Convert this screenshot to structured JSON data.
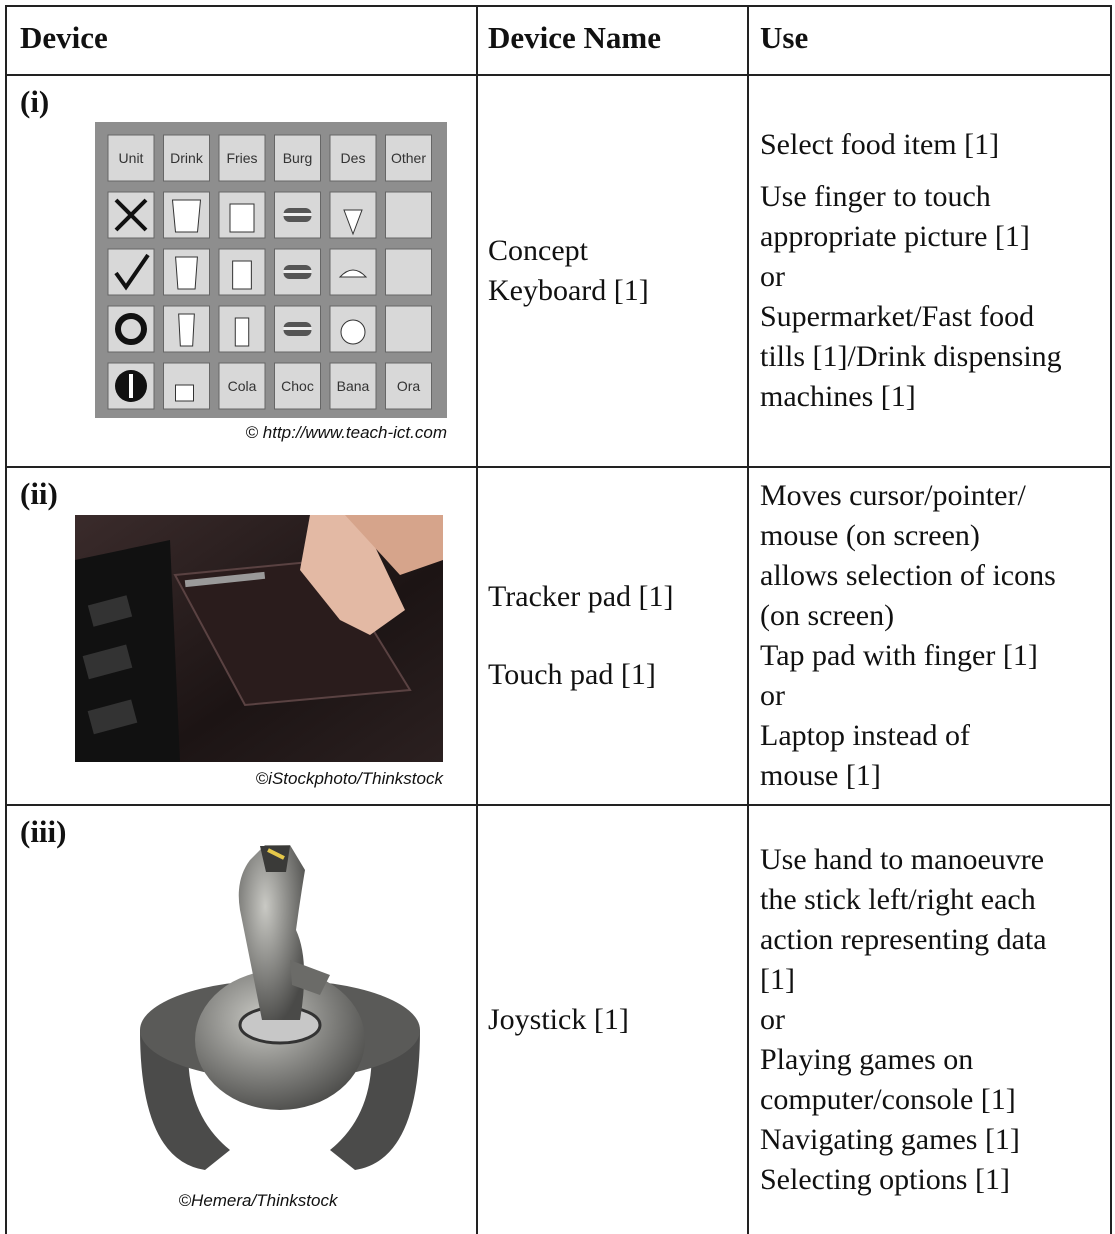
{
  "table": {
    "headers": [
      "Device",
      "Device Name",
      "Use"
    ],
    "rows": [
      {
        "label": "(i)",
        "image": {
          "top_keys": [
            "Unit",
            "Drink",
            "Fries",
            "Burg",
            "Des",
            "Other"
          ],
          "bottom_keys": [
            "Cola",
            "Choc",
            "Bana",
            "Ora"
          ],
          "credit": "© http://www.teach-ict.com"
        },
        "name": [
          [
            "Concept",
            "Keyboard [1]"
          ]
        ],
        "use": [
          [
            "Select food item [1]"
          ],
          [
            "Use finger to touch",
            "appropriate picture [1]",
            "or",
            "Supermarket/Fast food",
            "tills [1]/Drink dispensing",
            "machines [1]"
          ]
        ]
      },
      {
        "label": "(ii)",
        "image": {
          "credit": "©iStockphoto/Thinkstock"
        },
        "name": [
          [
            "Tracker pad [1]"
          ],
          [
            "Touch pad [1]"
          ]
        ],
        "use": [
          [
            "Moves cursor/pointer/",
            "mouse (on screen)",
            "allows selection of icons",
            "(on screen)",
            "Tap pad with finger [1]",
            "or",
            "Laptop instead of",
            "mouse [1]"
          ]
        ]
      },
      {
        "label": "(iii)",
        "image": {
          "credit": "©Hemera/Thinkstock"
        },
        "name": [
          [
            "Joystick [1]"
          ]
        ],
        "use": [
          [
            "Use hand to manoeuvre",
            "the stick left/right each",
            "action representing data",
            "[1]",
            "or",
            "Playing games on",
            "computer/console [1]",
            "Navigating games [1]",
            "Selecting options [1]"
          ]
        ]
      }
    ]
  }
}
